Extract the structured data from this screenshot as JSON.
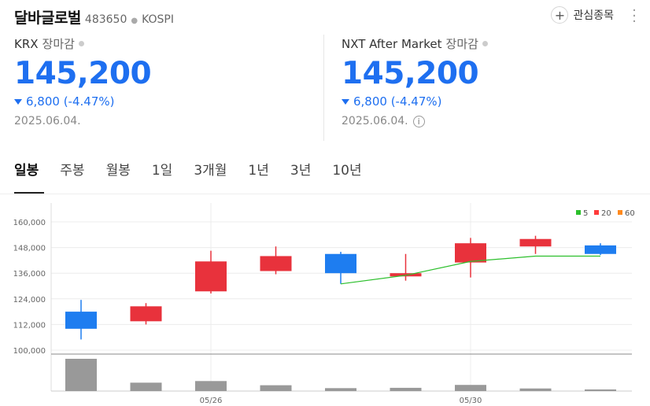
{
  "header": {
    "name": "달바글로벌",
    "code": "483650",
    "market": "KOSPI",
    "watch_label": "관심종목"
  },
  "krx": {
    "label": "KRX",
    "status": "장마감",
    "price": "145,200",
    "change": "6,800 (-4.47%)",
    "date": "2025.06.04."
  },
  "nxt": {
    "label": "NXT After Market",
    "status": "장마감",
    "price": "145,200",
    "change": "6,800 (-4.47%)",
    "date": "2025.06.04."
  },
  "tabs": [
    "일봉",
    "주봉",
    "월봉",
    "1일",
    "3개월",
    "1년",
    "3년",
    "10년"
  ],
  "colors": {
    "up": "#e8323c",
    "down": "#1e7df0",
    "price": "#1e6ff0",
    "ma5": "#2cbf2c",
    "ma20": "#ff3b3b",
    "ma60": "#ff8a1e"
  },
  "chart_data": {
    "type": "candlestick",
    "ylim": [
      100000,
      160000
    ],
    "yticks": [
      "160,000",
      "148,000",
      "136,000",
      "124,000",
      "112,000",
      "100,000"
    ],
    "x_labels": [
      {
        "index": 2,
        "label": "05/26"
      },
      {
        "index": 6,
        "label": "05/30"
      }
    ],
    "legend": [
      "5",
      "20",
      "60"
    ],
    "candles": [
      {
        "open": 118000,
        "close": 110000,
        "high": 123500,
        "low": 105000
      },
      {
        "open": 113500,
        "close": 120500,
        "high": 122000,
        "low": 112000
      },
      {
        "open": 127500,
        "close": 141500,
        "high": 146500,
        "low": 126500
      },
      {
        "open": 137000,
        "close": 144000,
        "high": 148500,
        "low": 135500
      },
      {
        "open": 145000,
        "close": 136000,
        "high": 146000,
        "low": 131000
      },
      {
        "open": 134500,
        "close": 136000,
        "high": 145000,
        "low": 132500
      },
      {
        "open": 141000,
        "close": 150000,
        "high": 152500,
        "low": 134000
      },
      {
        "open": 148500,
        "close": 152000,
        "high": 153500,
        "low": 145000
      },
      {
        "open": 149000,
        "close": 145000,
        "high": 150000,
        "low": 144500
      }
    ],
    "ma5": [
      null,
      null,
      null,
      null,
      131000,
      135000,
      141500,
      144000,
      144000
    ],
    "volume": [
      100,
      26,
      31,
      18,
      9,
      10,
      19,
      8,
      5
    ]
  }
}
